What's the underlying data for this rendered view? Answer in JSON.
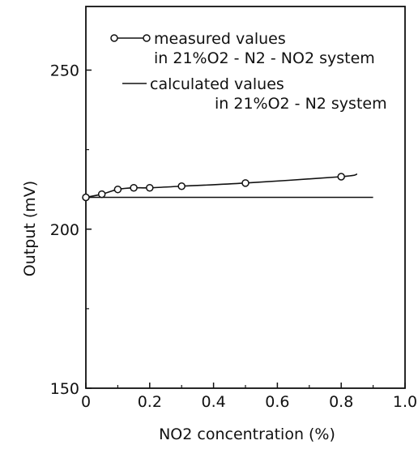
{
  "chart_data": {
    "type": "line",
    "title": "",
    "xlabel": "NO2 concentration (%)",
    "ylabel": "Output (mV)",
    "xlim": [
      0,
      1.0
    ],
    "ylim": [
      150,
      270
    ],
    "x_ticks": [
      "0",
      "0.2",
      "0.4",
      "0.6",
      "0.8",
      "1.0"
    ],
    "x_tick_values": [
      0,
      0.2,
      0.4,
      0.6,
      0.8,
      1.0
    ],
    "y_ticks": [
      "150",
      "200",
      "250"
    ],
    "y_tick_values": [
      150,
      200,
      250
    ],
    "grid": false,
    "legend_position": "top",
    "series": [
      {
        "legend_line1": "measured values",
        "legend_line2": "in 21%O2 - N2 - NO2 system",
        "style": "line-with-open-circles",
        "points": [
          {
            "x": 0.0,
            "y": 210.0
          },
          {
            "x": 0.05,
            "y": 211.0
          },
          {
            "x": 0.1,
            "y": 212.5
          },
          {
            "x": 0.15,
            "y": 213.0
          },
          {
            "x": 0.2,
            "y": 213.0
          },
          {
            "x": 0.3,
            "y": 213.5
          },
          {
            "x": 0.5,
            "y": 214.5
          },
          {
            "x": 0.8,
            "y": 216.5
          }
        ],
        "curve_end": {
          "x": 0.85,
          "y": 217.3
        }
      },
      {
        "legend_line1": "calculated values",
        "legend_line2": "in 21%O2 - N2 system",
        "style": "solid-line",
        "points": [
          {
            "x": 0.0,
            "y": 210.0
          },
          {
            "x": 0.9,
            "y": 210.0
          }
        ]
      }
    ]
  }
}
